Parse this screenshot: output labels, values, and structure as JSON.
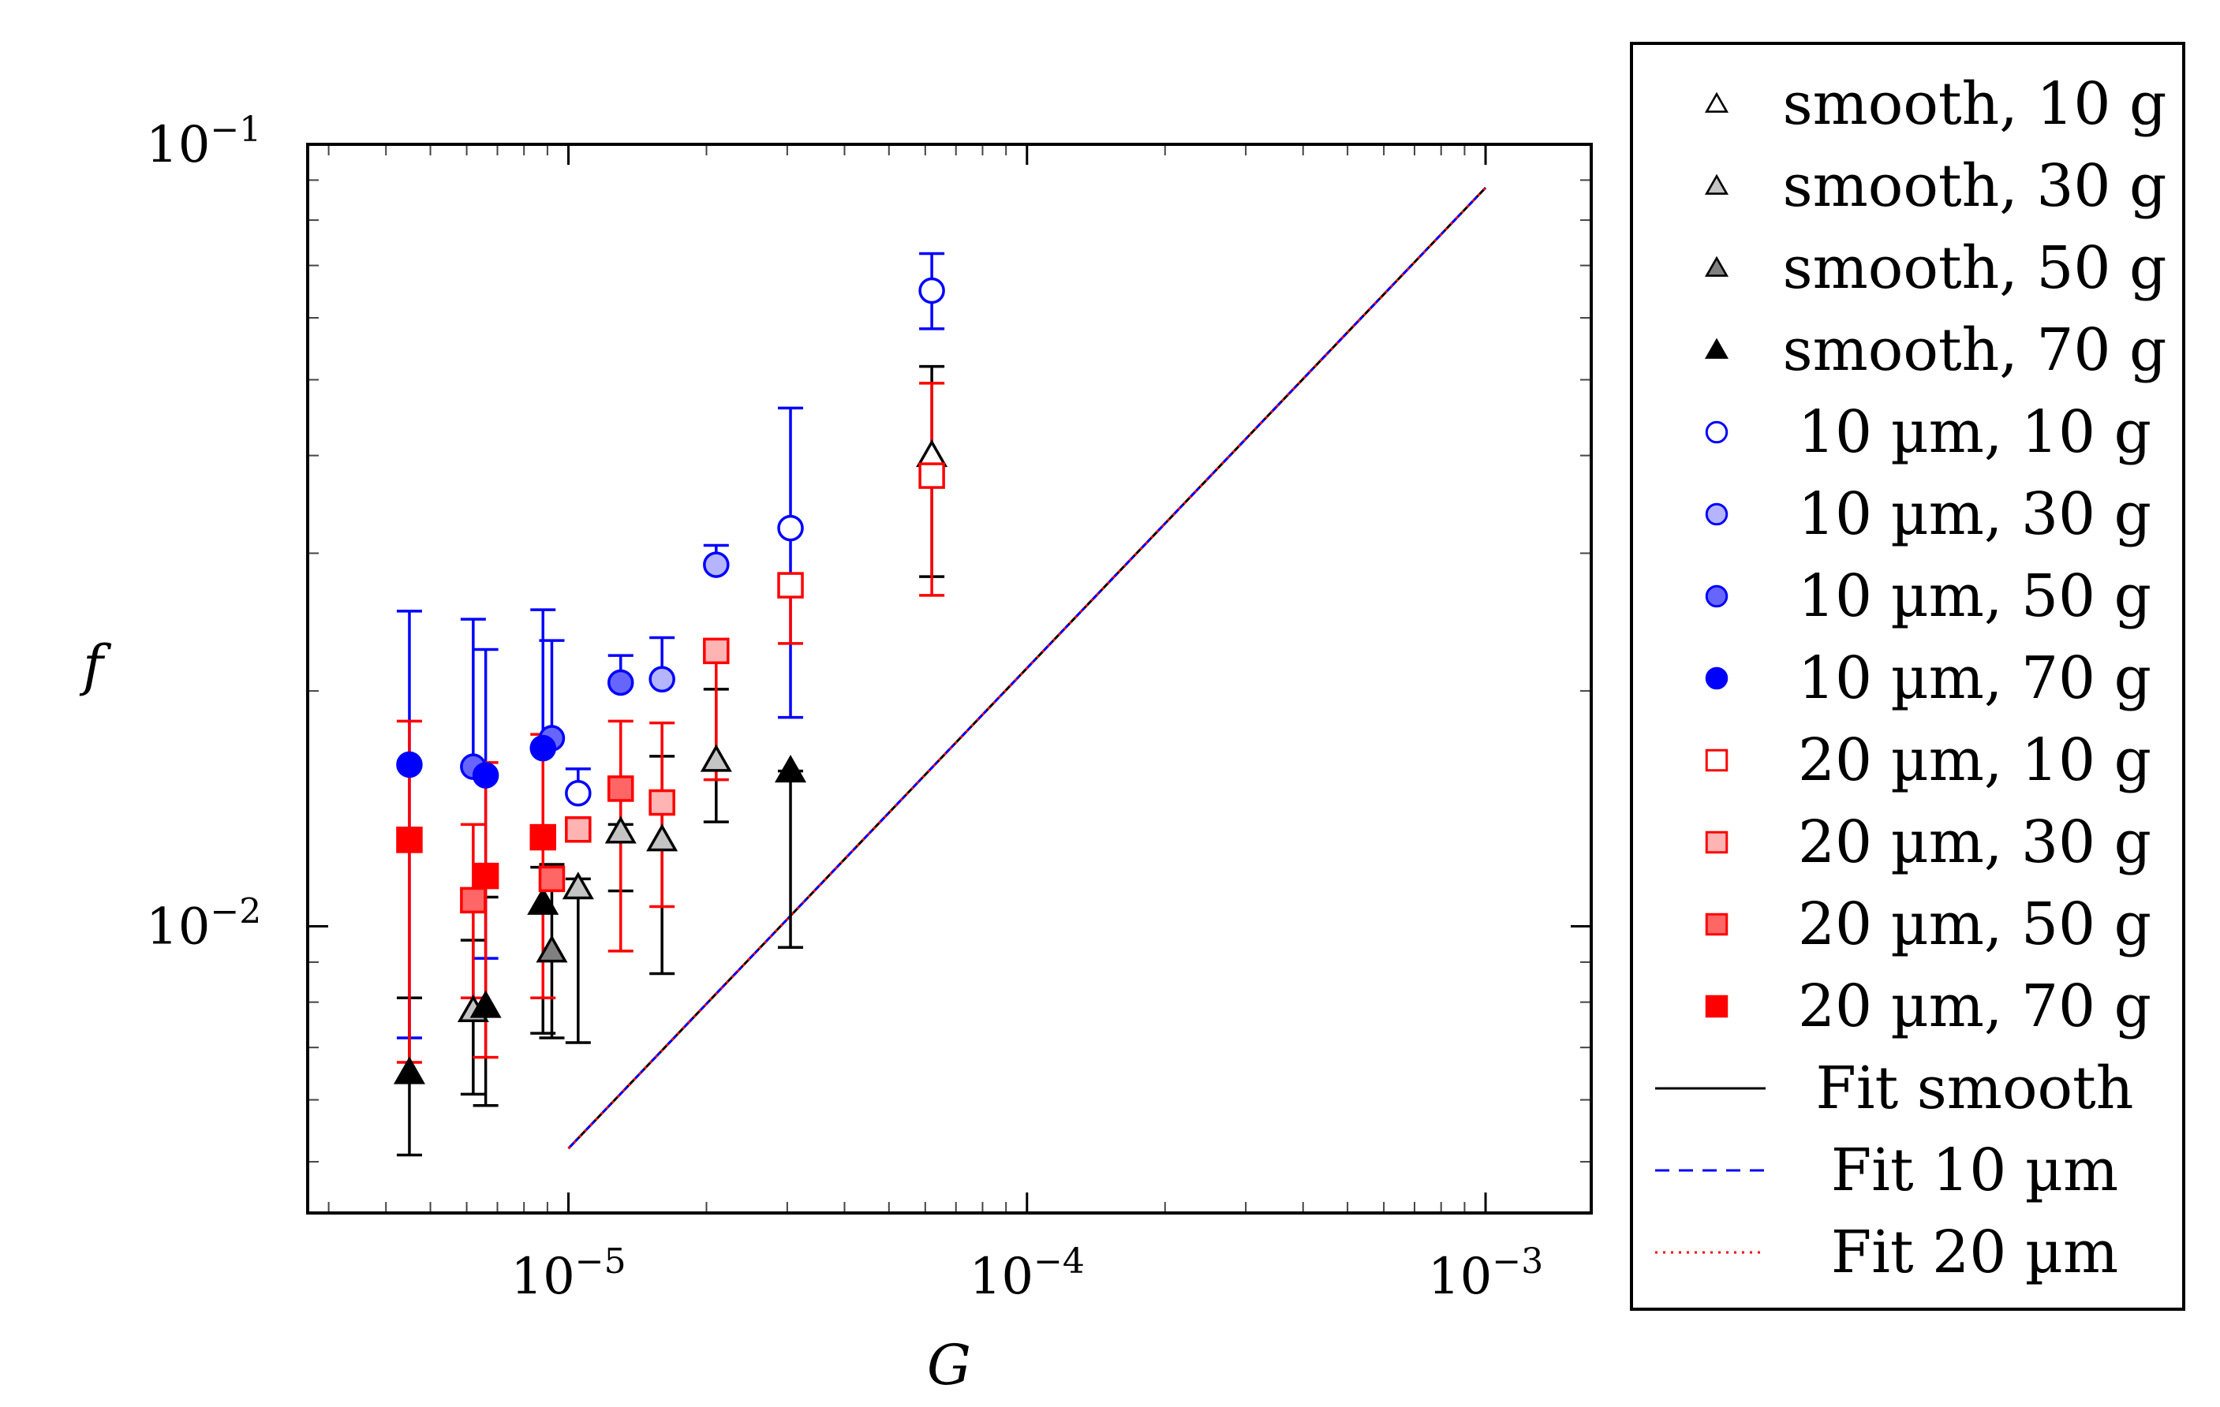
{
  "chart_data": {
    "type": "scatter",
    "title": "",
    "xlabel": "G",
    "ylabel": "f",
    "xscale": "log",
    "yscale": "log",
    "xlim": [
      2.7e-06,
      0.0017
    ],
    "ylim": [
      0.0043,
      0.1
    ],
    "grid": false,
    "legend_position": "outside-right",
    "x_ticks": [
      {
        "value": 1e-05,
        "base": "10",
        "exp": "−5"
      },
      {
        "value": 0.0001,
        "base": "10",
        "exp": "−4"
      },
      {
        "value": 0.001,
        "base": "10",
        "exp": "−3"
      }
    ],
    "y_ticks": [
      {
        "value": 0.01,
        "base": "10",
        "exp": "−2"
      },
      {
        "value": 0.1,
        "base": "10",
        "exp": "−1"
      }
    ],
    "series": [
      {
        "name": "smooth, 10 g",
        "marker": "triangle",
        "stroke": "#000000",
        "fill": "#ffffff",
        "err_color": "#000000",
        "points": [
          {
            "x": 6.2e-05,
            "y": 0.04,
            "lo": 0.028,
            "hi": 0.052
          }
        ]
      },
      {
        "name": "smooth, 30 g",
        "marker": "triangle",
        "stroke": "#000000",
        "fill": "#c4c4c4",
        "err_color": "#000000",
        "points": [
          {
            "x": 6.2e-06,
            "y": 0.0078,
            "lo": 0.0061,
            "hi": 0.0096
          },
          {
            "x": 1.05e-05,
            "y": 0.0112,
            "lo": 0.0071,
            "hi": 0.0115
          },
          {
            "x": 1.3e-05,
            "y": 0.0132,
            "lo": 0.0111,
            "hi": 0.0135
          },
          {
            "x": 1.6e-05,
            "y": 0.0129,
            "lo": 0.0087,
            "hi": 0.0165
          },
          {
            "x": 2.1e-05,
            "y": 0.0163,
            "lo": 0.0136,
            "hi": 0.0201
          }
        ]
      },
      {
        "name": "smooth, 50 g",
        "marker": "triangle",
        "stroke": "#000000",
        "fill": "#808080",
        "err_color": "#000000",
        "points": [
          {
            "x": 9.2e-06,
            "y": 0.0093,
            "lo": 0.0072,
            "hi": 0.012
          }
        ]
      },
      {
        "name": "smooth, 70 g",
        "marker": "triangle",
        "stroke": "#000000",
        "fill": "#000000",
        "err_color": "#000000",
        "points": [
          {
            "x": 4.5e-06,
            "y": 0.0065,
            "lo": 0.0051,
            "hi": 0.0081
          },
          {
            "x": 6.6e-06,
            "y": 0.0079,
            "lo": 0.0059,
            "hi": 0.0109
          },
          {
            "x": 8.8e-06,
            "y": 0.0107,
            "lo": 0.0073,
            "hi": 0.0119
          },
          {
            "x": 3.05e-05,
            "y": 0.0158,
            "lo": 0.0094,
            "hi": 0.0158
          }
        ]
      },
      {
        "name": "10 µm, 10 g",
        "marker": "circle",
        "stroke": "#0000ff",
        "fill": "#ffffff",
        "err_color": "#0000ff",
        "points": [
          {
            "x": 1.05e-05,
            "y": 0.0148,
            "lo": 0.0148,
            "hi": 0.0159
          },
          {
            "x": 3.05e-05,
            "y": 0.0323,
            "lo": 0.0185,
            "hi": 0.046
          },
          {
            "x": 6.2e-05,
            "y": 0.065,
            "lo": 0.0581,
            "hi": 0.0725
          }
        ]
      },
      {
        "name": "10 µm, 30 g",
        "marker": "circle",
        "stroke": "#0000ff",
        "fill": "#b4b4ff",
        "err_color": "#0000ff",
        "points": [
          {
            "x": 1.6e-05,
            "y": 0.0207,
            "lo": 0.0207,
            "hi": 0.0234
          },
          {
            "x": 2.1e-05,
            "y": 0.029,
            "lo": 0.029,
            "hi": 0.0307
          }
        ]
      },
      {
        "name": "10 µm, 50 g",
        "marker": "circle",
        "stroke": "#0000ff",
        "fill": "#6666ff",
        "err_color": "#0000ff",
        "points": [
          {
            "x": 6.2e-06,
            "y": 0.016,
            "lo": 0.016,
            "hi": 0.0247
          },
          {
            "x": 9.2e-06,
            "y": 0.0174,
            "lo": 0.0174,
            "hi": 0.0232
          },
          {
            "x": 1.3e-05,
            "y": 0.0205,
            "lo": 0.0205,
            "hi": 0.0222
          }
        ]
      },
      {
        "name": "10 µm, 70 g",
        "marker": "circle",
        "stroke": "#0000ff",
        "fill": "#0000ff",
        "err_color": "#0000ff",
        "points": [
          {
            "x": 4.5e-06,
            "y": 0.0161,
            "lo": 0.0072,
            "hi": 0.0253
          },
          {
            "x": 6.6e-06,
            "y": 0.0156,
            "lo": 0.0091,
            "hi": 0.0226
          },
          {
            "x": 8.8e-06,
            "y": 0.0169,
            "lo": 0.0169,
            "hi": 0.0254
          }
        ]
      },
      {
        "name": "20 µm, 10 g",
        "marker": "square",
        "stroke": "#ff0000",
        "fill": "#ffffff",
        "err_color": "#ff0000",
        "points": [
          {
            "x": 6.2e-05,
            "y": 0.0377,
            "lo": 0.0265,
            "hi": 0.0495
          },
          {
            "x": 3.05e-05,
            "y": 0.0273,
            "lo": 0.023,
            "hi": 0.0273
          }
        ]
      },
      {
        "name": "20 µm, 30 g",
        "marker": "square",
        "stroke": "#ff0000",
        "fill": "#ffb4b4",
        "err_color": "#ff0000",
        "points": [
          {
            "x": 1.05e-05,
            "y": 0.0133,
            "lo": 0.0133,
            "hi": 0.0133
          },
          {
            "x": 1.6e-05,
            "y": 0.0144,
            "lo": 0.0106,
            "hi": 0.0182
          },
          {
            "x": 2.1e-05,
            "y": 0.0225,
            "lo": 0.0154,
            "hi": 0.0225
          }
        ]
      },
      {
        "name": "20 µm, 50 g",
        "marker": "square",
        "stroke": "#ff0000",
        "fill": "#ff6666",
        "err_color": "#ff0000",
        "points": [
          {
            "x": 6.2e-06,
            "y": 0.0108,
            "lo": 0.0081,
            "hi": 0.0135
          },
          {
            "x": 9.2e-06,
            "y": 0.0115,
            "lo": 0.0115,
            "hi": 0.0115
          },
          {
            "x": 1.3e-05,
            "y": 0.015,
            "lo": 0.0093,
            "hi": 0.0183
          }
        ]
      },
      {
        "name": "20 µm, 70 g",
        "marker": "square",
        "stroke": "#ff0000",
        "fill": "#ff0000",
        "err_color": "#ff0000",
        "points": [
          {
            "x": 4.5e-06,
            "y": 0.0129,
            "lo": 0.0067,
            "hi": 0.0183
          },
          {
            "x": 6.6e-06,
            "y": 0.0116,
            "lo": 0.0068,
            "hi": 0.0162
          },
          {
            "x": 8.8e-06,
            "y": 0.013,
            "lo": 0.0081,
            "hi": 0.0176
          }
        ]
      }
    ],
    "fits": [
      {
        "name": "Fit smooth",
        "color": "#000000",
        "style": "solid",
        "x": [
          1e-05,
          0.001
        ],
        "y": [
          0.0052,
          0.088
        ]
      },
      {
        "name": "Fit 10 µm",
        "color": "#0000ff",
        "style": "dashed",
        "x": [
          1e-05,
          0.001
        ],
        "y": [
          0.0052,
          0.088
        ]
      },
      {
        "name": "Fit 20 µm",
        "color": "#ff0000",
        "style": "dotted",
        "x": [
          1e-05,
          0.001
        ],
        "y": [
          0.0052,
          0.088
        ]
      }
    ]
  }
}
